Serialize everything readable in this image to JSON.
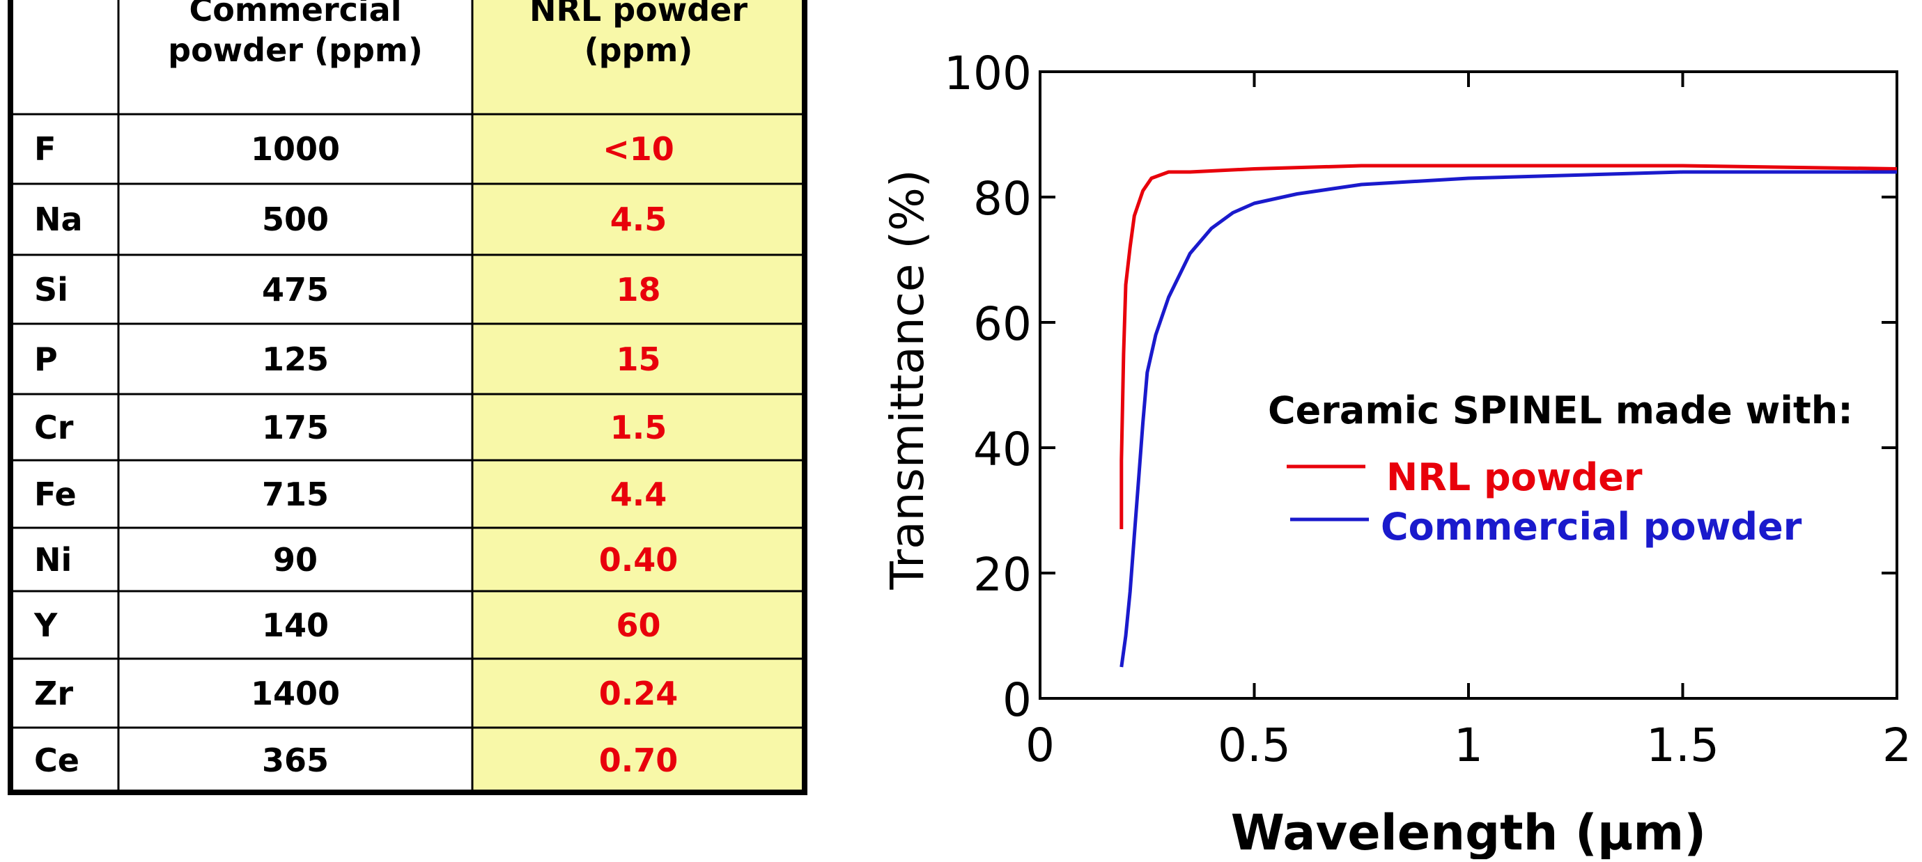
{
  "table": {
    "headers": [
      "",
      "Commercial\npowder (ppm)",
      "NRL powder\n(ppm)"
    ],
    "rows": [
      {
        "element": "F",
        "commercial": "1000",
        "nrl": "<10"
      },
      {
        "element": "Na",
        "commercial": "500",
        "nrl": "4.5"
      },
      {
        "element": "Si",
        "commercial": "475",
        "nrl": "18"
      },
      {
        "element": "P",
        "commercial": "125",
        "nrl": "15"
      },
      {
        "element": "Cr",
        "commercial": "175",
        "nrl": "1.5"
      },
      {
        "element": "Fe",
        "commercial": "715",
        "nrl": "4.4"
      },
      {
        "element": "Ni",
        "commercial": "90",
        "nrl": "0.40"
      },
      {
        "element": "Y",
        "commercial": "140",
        "nrl": "60"
      },
      {
        "element": "Zr",
        "commercial": "1400",
        "nrl": "0.24"
      },
      {
        "element": "Ce",
        "commercial": "365",
        "nrl": "0.70"
      }
    ]
  },
  "colors": {
    "nrl": "#e8000b",
    "commercial": "#1a1acc",
    "highlight_column": "#f8f8a8"
  },
  "chart_data": {
    "type": "line",
    "title": "",
    "xlabel": "Wavelength (µm)",
    "ylabel": "Transmittance (%)",
    "xlim": [
      0,
      2
    ],
    "ylim": [
      0,
      100
    ],
    "xticks": [
      0,
      0.5,
      1,
      1.5,
      2
    ],
    "xtick_labels": [
      "0",
      "0.5",
      "1",
      "1.5",
      "2"
    ],
    "yticks": [
      0,
      20,
      40,
      60,
      80,
      100
    ],
    "ytick_labels": [
      "0",
      "20",
      "40",
      "60",
      "80",
      "100"
    ],
    "legend_title": "Ceramic SPINEL made with:",
    "legend_position": "center-right",
    "series": [
      {
        "name": "NRL powder",
        "color": "#e8000b",
        "x": [
          0.19,
          0.19,
          0.195,
          0.2,
          0.21,
          0.22,
          0.24,
          0.26,
          0.3,
          0.35,
          0.5,
          0.75,
          1.0,
          1.5,
          2.0
        ],
        "y": [
          27,
          38,
          55,
          66,
          72,
          77,
          81,
          83,
          84,
          84,
          84.5,
          85,
          85,
          85,
          84.5
        ]
      },
      {
        "name": "Commercial powder",
        "color": "#1a1acc",
        "x": [
          0.19,
          0.2,
          0.21,
          0.22,
          0.23,
          0.24,
          0.25,
          0.27,
          0.3,
          0.35,
          0.4,
          0.45,
          0.5,
          0.6,
          0.75,
          1.0,
          1.25,
          1.5,
          2.0
        ],
        "y": [
          5,
          10,
          17,
          26,
          35,
          44,
          52,
          58,
          64,
          71,
          75,
          77.5,
          79,
          80.5,
          82,
          83,
          83.5,
          84,
          84
        ]
      }
    ]
  }
}
